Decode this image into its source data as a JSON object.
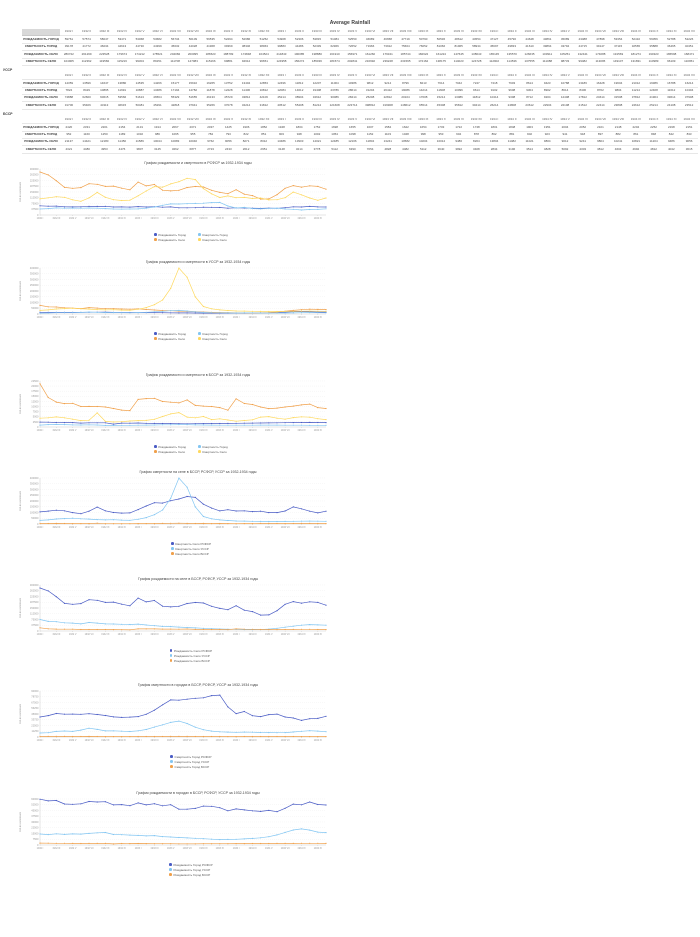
{
  "page_title": "Average Rainfall",
  "axis_label": "Кол-во населения",
  "colors": {
    "blue": "#4a5cc5",
    "orange": "#f0a04a",
    "lightblue": "#83c6f2",
    "yellow": "#fed95f",
    "grid": "#e9e9e9",
    "axis": "#c0c0c0",
    "tick_text": "#999999"
  },
  "months": [
    "1932 I",
    "1932 II",
    "1932 III",
    "1932 IV",
    "1932 V",
    "1932 VI",
    "1932 VII",
    "1932 VIII",
    "1932 IX",
    "1932 X",
    "1932 XI",
    "1932 XII",
    "1933 I",
    "1933 II",
    "1933 III",
    "1933 IV",
    "1933 V",
    "1933 VI",
    "1933 VII",
    "1933 VIII",
    "1933 IX",
    "1933 X",
    "1933 XI",
    "1933 XII",
    "1934 I",
    "1934 II",
    "1934 III",
    "1934 IV",
    "1934 V",
    "1934 VI",
    "1934 VII",
    "1934 VIII",
    "1934 IX",
    "1934 X",
    "1934 XI",
    "1934 XII"
  ],
  "row_labels": [
    "РОЖДАЕМОСТЬ ГОРОД",
    "СМЕРТНОСТЬ ГОРОД",
    "РОЖДАЕМОСТЬ СЕЛО",
    "СМЕРТНОСТЬ СЕЛО"
  ],
  "row_keys": [
    "birth_city",
    "death_city",
    "birth_village",
    "death_village"
  ],
  "tables": [
    {
      "section_label": "",
      "republic": "rsfsr",
      "corner_shaded": true
    },
    {
      "section_label": "УССР",
      "republic": "ussr",
      "corner_shaded": false
    },
    {
      "section_label": "БССР",
      "republic": "bssr",
      "corner_shaded": false
    }
  ],
  "series_data": {
    "rsfsr": {
      "birth_city": [
        59761,
        57574,
        58047,
        53471,
        53068,
        53682,
        56734,
        56109,
        56535,
        52294,
        52686,
        51252,
        54908,
        52306,
        53815,
        51084,
        52550,
        46689,
        46658,
        47719,
        50790,
        50536,
        48612,
        44554,
        47127,
        45790,
        44648,
        43861,
        45089,
        43488,
        47898,
        53354,
        52410,
        56056,
        52788,
        52226
      ],
      "death_city": [
        39178,
        41772,
        46034,
        44613,
        44730,
        44399,
        45632,
        44028,
        41968,
        39369,
        38346,
        38963,
        39883,
        44486,
        52339,
        62966,
        72652,
        71966,
        73912,
        75664,
        76652,
        81066,
        81965,
        58934,
        45697,
        49833,
        41610,
        39864,
        43794,
        44715,
        39147,
        37115,
        32565,
        35888,
        36465,
        40451
      ],
      "birth_village": [
        280722,
        261269,
        223528,
        179674,
        174212,
        178521,
        204082,
        200095,
        186523,
        188799,
        174848,
        164524,
        214843,
        190085,
        198880,
        161910,
        156971,
        161260,
        179341,
        185744,
        182622,
        161224,
        147645,
        138643,
        165145,
        135570,
        126635,
        103911,
        105251,
        132441,
        174088,
        191569,
        181274,
        190323,
        186598,
        168471
      ],
      "death_village": [
        104905,
        112362,
        119582,
        115216,
        99304,
        89151,
        111708,
        147083,
        115166,
        99881,
        94612,
        96651,
        124958,
        156274,
        185036,
        181574,
        202841,
        216992,
        239228,
        231595,
        172162,
        138175,
        114023,
        124728,
        112902,
        114536,
        107555,
        111088,
        98733,
        99482,
        113095,
        149107,
        131831,
        110989,
        96109,
        110951
      ]
    },
    "ussr": {
      "birth_city": [
        14359,
        13596,
        14647,
        13880,
        14535,
        14266,
        15177,
        15910,
        16265,
        13752,
        13404,
        12853,
        12496,
        11812,
        12207,
        11004,
        10386,
        9812,
        9214,
        8796,
        8213,
        7614,
        7042,
        7247,
        7418,
        7903,
        8614,
        9423,
        10788,
        13186,
        16428,
        19604,
        21012,
        19386,
        16788,
        16214
      ],
      "death_city": [
        7824,
        8429,
        10895,
        11691,
        10887,
        13486,
        17194,
        14782,
        11878,
        12228,
        11406,
        10812,
        12084,
        14612,
        19408,
        23786,
        28614,
        31204,
        26412,
        19086,
        14214,
        11608,
        10096,
        9614,
        9102,
        9608,
        9304,
        8902,
        8614,
        8406,
        8702,
        9804,
        11214,
        12408,
        11612,
        10404
      ],
      "birth_village": [
        74888,
        62660,
        60615,
        53566,
        51613,
        46564,
        55329,
        51655,
        46133,
        45729,
        43812,
        42106,
        45214,
        38904,
        34612,
        30086,
        28414,
        25208,
        22812,
        20104,
        17608,
        15214,
        13086,
        11812,
        10414,
        9308,
        8712,
        9204,
        12408,
        17812,
        24614,
        31508,
        37812,
        41904,
        39614,
        37908
      ],
      "death_village": [
        31706,
        35406,
        43113,
        46615,
        50481,
        45291,
        42818,
        37941,
        35266,
        37078,
        34214,
        31812,
        40512,
        55408,
        81214,
        121608,
        223714,
        398812,
        319908,
        148612,
        65514,
        45308,
        35812,
        30414,
        26214,
        24808,
        23612,
        22904,
        22108,
        21512,
        22414,
        23808,
        24612,
        25214,
        24108,
        23512
      ]
    },
    "bssr": {
      "birth_city": [
        2420,
        2331,
        2201,
        2154,
        2131,
        1914,
        2067,
        2071,
        2037,
        1425,
        1906,
        1852,
        1948,
        1804,
        1752,
        1698,
        1655,
        1607,
        1584,
        1622,
        1654,
        1703,
        1722,
        1748,
        1801,
        1848,
        1903,
        1951,
        2004,
        2052,
        2101,
        2148,
        2204,
        2252,
        2198,
        2151
      ],
      "death_city": [
        952,
        1160,
        1250,
        1189,
        1032,
        986,
        1095,
        955,
        784,
        793,
        822,
        851,
        903,
        948,
        1002,
        1054,
        1098,
        1152,
        1103,
        1048,
        998,
        953,
        904,
        878,
        862,
        881,
        902,
        923,
        941,
        918,
        897,
        882,
        861,
        848,
        842,
        833
      ],
      "birth_village": [
        21137,
        14421,
        12180,
        11450,
        11589,
        10044,
        10083,
        10040,
        9762,
        9056,
        8271,
        8012,
        13486,
        13903,
        14021,
        12485,
        12106,
        11804,
        13241,
        10582,
        10204,
        10012,
        9486,
        8204,
        13804,
        11482,
        11021,
        9804,
        9012,
        9241,
        9804,
        10241,
        10821,
        11204,
        9486,
        9056
      ],
      "death_village": [
        4321,
        4480,
        4953,
        4476,
        3807,
        3145,
        3262,
        6877,
        2723,
        2433,
        2612,
        2951,
        3148,
        3214,
        3778,
        5112,
        6390,
        7054,
        4828,
        4482,
        5112,
        3640,
        3992,
        3408,
        2834,
        3196,
        3514,
        4828,
        5092,
        4303,
        3812,
        4604,
        4992,
        4812,
        4042,
        3615
      ]
    }
  },
  "chart_data": [
    {
      "id": "rsfsr-birth-death",
      "type": "line",
      "title": "График рождаемости и смертности в РСФСР за 1932-1934 годы",
      "ylabel": "Кол-во населения",
      "ymax": 300000,
      "ystep": 37500,
      "legend_cols": 2,
      "series": [
        {
          "label": "Рождаемость Город",
          "republic": "rsfsr",
          "key": "birth_city",
          "color": "blue"
        },
        {
          "label": "Рождаемость Село",
          "republic": "rsfsr",
          "key": "birth_village",
          "color": "orange"
        },
        {
          "label": "Смертность Город",
          "republic": "rsfsr",
          "key": "death_city",
          "color": "lightblue"
        },
        {
          "label": "Смертность Село",
          "republic": "rsfsr",
          "key": "death_village",
          "color": "yellow"
        }
      ]
    },
    {
      "id": "ussr-birth-death",
      "type": "line",
      "title": "График рождаемости и смертности в УССР за 1932-1934 годы",
      "ylabel": "Кол-во населения",
      "ymax": 400000,
      "ystep": 50000,
      "legend_cols": 2,
      "series": [
        {
          "label": "Рождаемость Город",
          "republic": "ussr",
          "key": "birth_city",
          "color": "blue"
        },
        {
          "label": "Рождаемость Село",
          "republic": "ussr",
          "key": "birth_village",
          "color": "orange"
        },
        {
          "label": "Смертность Город",
          "republic": "ussr",
          "key": "death_city",
          "color": "lightblue"
        },
        {
          "label": "Смертность Село",
          "republic": "ussr",
          "key": "death_village",
          "color": "yellow"
        }
      ]
    },
    {
      "id": "bssr-birth-death",
      "type": "line",
      "title": "График рождаемости и смертности в БССР за 1932-1934 годы",
      "ylabel": "Кол-во населения",
      "ymax": 22500,
      "ystep": 2500,
      "legend_cols": 2,
      "series": [
        {
          "label": "Рождаемость Город",
          "republic": "bssr",
          "key": "birth_city",
          "color": "blue"
        },
        {
          "label": "Рождаемость Село",
          "republic": "bssr",
          "key": "birth_village",
          "color": "orange"
        },
        {
          "label": "Смертность Город",
          "republic": "bssr",
          "key": "death_city",
          "color": "lightblue"
        },
        {
          "label": "Смертность Село",
          "republic": "bssr",
          "key": "death_village",
          "color": "yellow"
        }
      ]
    },
    {
      "id": "village-deaths",
      "type": "line",
      "title": "График смертности на селе в БССР, РСФСР, УССР за 1932-1934 годы",
      "ylabel": "Кол-во населения",
      "ymax": 400000,
      "ystep": 50000,
      "legend_cols": 1,
      "series": [
        {
          "label": "Смертность Село РСФСР",
          "republic": "rsfsr",
          "key": "death_village",
          "color": "blue"
        },
        {
          "label": "Смертность Село УССР",
          "republic": "ussr",
          "key": "death_village",
          "color": "lightblue"
        },
        {
          "label": "Смертность Село БССР",
          "republic": "bssr",
          "key": "death_village",
          "color": "orange"
        }
      ]
    },
    {
      "id": "village-births",
      "type": "line",
      "title": "График рождаемости на селе в БССР, РСФСР, УССР за 1932-1934 годы",
      "ylabel": "Кол-во населения",
      "ymax": 300000,
      "ystep": 37500,
      "legend_cols": 1,
      "series": [
        {
          "label": "Рождаемость Село РСФСР",
          "republic": "rsfsr",
          "key": "birth_village",
          "color": "blue"
        },
        {
          "label": "Рождаемость Село УССР",
          "republic": "ussr",
          "key": "birth_village",
          "color": "lightblue"
        },
        {
          "label": "Рождаемость Село БССР",
          "republic": "bssr",
          "key": "birth_village",
          "color": "orange"
        }
      ]
    },
    {
      "id": "city-deaths",
      "type": "line",
      "title": "График смертности в городах в БССР, РСФСР, УССР за 1932-1934 годы",
      "ylabel": "Кол-во населения",
      "ymax": 90000,
      "ystep": 11250,
      "legend_cols": 1,
      "series": [
        {
          "label": "Смертность Город РСФСР",
          "republic": "rsfsr",
          "key": "death_city",
          "color": "blue"
        },
        {
          "label": "Смертность Город УССР",
          "republic": "ussr",
          "key": "death_city",
          "color": "lightblue"
        },
        {
          "label": "Смертность Город БССР",
          "republic": "bssr",
          "key": "death_city",
          "color": "orange"
        }
      ]
    },
    {
      "id": "city-births",
      "type": "line",
      "title": "График рождаемости в городах в БССР, РСФСР, УССР за 1932-1934 годы",
      "ylabel": "Кол-во населения",
      "ymax": 60000,
      "ystep": 7500,
      "legend_cols": 1,
      "series": [
        {
          "label": "Рождаемость Город РСФСР",
          "republic": "rsfsr",
          "key": "birth_city",
          "color": "blue"
        },
        {
          "label": "Рождаемость Город УССР",
          "republic": "ussr",
          "key": "birth_city",
          "color": "lightblue"
        },
        {
          "label": "Рождаемость Город БССР",
          "republic": "bssr",
          "key": "birth_city",
          "color": "orange"
        }
      ]
    }
  ]
}
